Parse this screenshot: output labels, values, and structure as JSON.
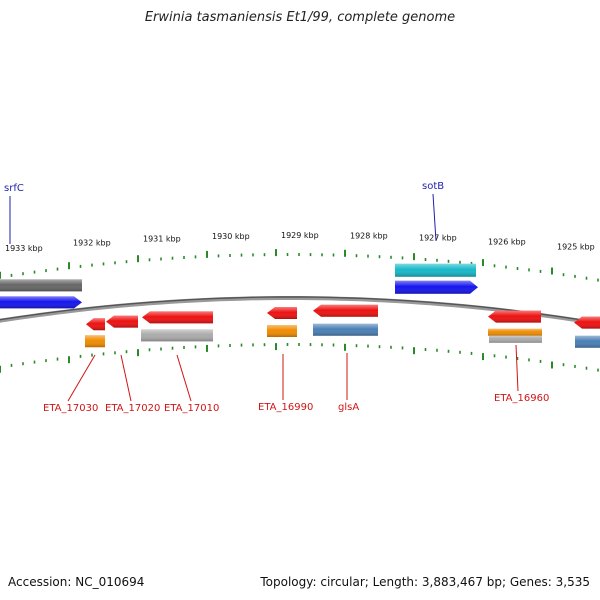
{
  "title": "Erwinia tasmaniensis Et1/99, complete genome",
  "footer": {
    "accession": "Accession: NC_010694",
    "summary": "Topology: circular; Length: 3,883,467 bp; Genes: 3,535"
  },
  "colors": {
    "backbone": "#777777",
    "tick": "#2a8a2a",
    "forward_label": "#1f1fb0",
    "reverse_label": "#d01515",
    "gene_red": "#ee1111",
    "gene_blue": "#1515ee",
    "gene_cyan": "#16b8c8",
    "gene_dark": "#666666",
    "gene_orange": "#f08c00",
    "gene_gray": "#aaaaaa",
    "gene_steel": "#4a7fb5"
  },
  "scale": {
    "unit": "kbp",
    "labels": [
      "1933 kbp",
      "1932 kbp",
      "1931 kbp",
      "1930 kbp",
      "1929 kbp",
      "1928 kbp",
      "1927 kbp",
      "1926 kbp",
      "1925 kbp"
    ]
  },
  "gene_labels_forward": [
    "srfC",
    "sotB"
  ],
  "gene_labels_reverse": [
    "ETA_17030",
    "ETA_17020",
    "ETA_17010",
    "ETA_16990",
    "glsA",
    "ETA_16960"
  ]
}
